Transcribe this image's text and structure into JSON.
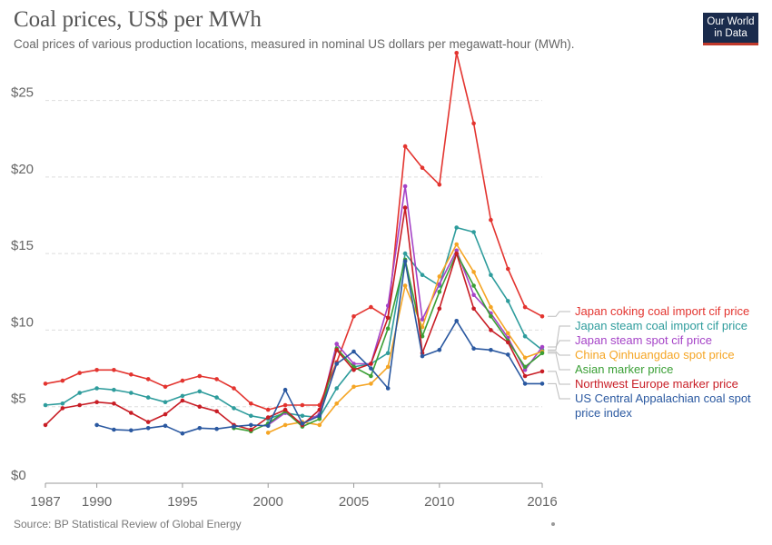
{
  "header": {
    "title": "Coal prices, US$ per MWh",
    "subtitle": "Coal prices of various production locations, measured in nominal US dollars per megawatt-hour (MWh).",
    "logo_line1": "Our World",
    "logo_line2": "in Data"
  },
  "footer": {
    "source": "Source: BP Statistical Review of Global Energy"
  },
  "chart_data": {
    "type": "line",
    "title": "Coal prices, US$ per MWh",
    "xlabel": "",
    "ylabel": "",
    "xlim": [
      1987,
      2016
    ],
    "ylim": [
      0,
      28
    ],
    "grid": true,
    "legend_placement": "right",
    "x_ticks": [
      {
        "value": 1987,
        "label": "1987"
      },
      {
        "value": 1990,
        "label": "1990"
      },
      {
        "value": 1995,
        "label": "1995"
      },
      {
        "value": 2000,
        "label": "2000"
      },
      {
        "value": 2005,
        "label": "2005"
      },
      {
        "value": 2010,
        "label": "2010"
      },
      {
        "value": 2016,
        "label": "2016"
      }
    ],
    "y_ticks": [
      {
        "value": 0,
        "label": "$0"
      },
      {
        "value": 5,
        "label": "$5"
      },
      {
        "value": 10,
        "label": "$10"
      },
      {
        "value": 15,
        "label": "$15"
      },
      {
        "value": 20,
        "label": "$20"
      },
      {
        "value": 25,
        "label": "$25"
      }
    ],
    "series": [
      {
        "name": "Japan coking coal import cif price",
        "color": "#e3342f",
        "points": [
          [
            1987,
            6.5
          ],
          [
            1988,
            6.7
          ],
          [
            1989,
            7.2
          ],
          [
            1990,
            7.4
          ],
          [
            1991,
            7.4
          ],
          [
            1992,
            7.1
          ],
          [
            1993,
            6.8
          ],
          [
            1994,
            6.3
          ],
          [
            1995,
            6.7
          ],
          [
            1996,
            7.0
          ],
          [
            1997,
            6.8
          ],
          [
            1998,
            6.2
          ],
          [
            1999,
            5.2
          ],
          [
            2000,
            4.8
          ],
          [
            2001,
            5.1
          ],
          [
            2002,
            5.1
          ],
          [
            2003,
            5.1
          ],
          [
            2004,
            7.9
          ],
          [
            2005,
            10.9
          ],
          [
            2006,
            11.5
          ],
          [
            2007,
            10.8
          ],
          [
            2008,
            22.0
          ],
          [
            2009,
            20.6
          ],
          [
            2010,
            19.5
          ],
          [
            2011,
            28.1
          ],
          [
            2012,
            23.5
          ],
          [
            2013,
            17.2
          ],
          [
            2014,
            14.0
          ],
          [
            2015,
            11.5
          ],
          [
            2016,
            10.9
          ]
        ]
      },
      {
        "name": "Japan steam coal import cif price",
        "color": "#2e9c9c",
        "points": [
          [
            1987,
            5.1
          ],
          [
            1988,
            5.2
          ],
          [
            1989,
            5.9
          ],
          [
            1990,
            6.2
          ],
          [
            1991,
            6.1
          ],
          [
            1992,
            5.9
          ],
          [
            1993,
            5.6
          ],
          [
            1994,
            5.3
          ],
          [
            1995,
            5.7
          ],
          [
            1996,
            6.0
          ],
          [
            1997,
            5.6
          ],
          [
            1998,
            4.9
          ],
          [
            1999,
            4.4
          ],
          [
            2000,
            4.2
          ],
          [
            2001,
            4.6
          ],
          [
            2002,
            4.4
          ],
          [
            2003,
            4.3
          ],
          [
            2004,
            6.2
          ],
          [
            2005,
            7.6
          ],
          [
            2006,
            7.8
          ],
          [
            2007,
            8.5
          ],
          [
            2008,
            15.0
          ],
          [
            2009,
            13.6
          ],
          [
            2010,
            12.9
          ],
          [
            2011,
            16.7
          ],
          [
            2012,
            16.4
          ],
          [
            2013,
            13.6
          ],
          [
            2014,
            11.9
          ],
          [
            2015,
            9.6
          ],
          [
            2016,
            8.7
          ]
        ]
      },
      {
        "name": "Japan steam spot cif price",
        "color": "#a543c7",
        "points": [
          [
            2000,
            3.8
          ],
          [
            2001,
            4.6
          ],
          [
            2002,
            3.9
          ],
          [
            2003,
            4.5
          ],
          [
            2004,
            9.1
          ],
          [
            2005,
            7.8
          ],
          [
            2006,
            7.8
          ],
          [
            2007,
            11.6
          ],
          [
            2008,
            19.4
          ],
          [
            2009,
            10.7
          ],
          [
            2010,
            13.0
          ],
          [
            2011,
            15.2
          ],
          [
            2012,
            12.3
          ],
          [
            2013,
            11.1
          ],
          [
            2014,
            9.5
          ],
          [
            2015,
            7.4
          ],
          [
            2016,
            8.9
          ]
        ]
      },
      {
        "name": "China Qinhuangdao spot price",
        "color": "#f5a524",
        "points": [
          [
            2000,
            3.3
          ],
          [
            2001,
            3.8
          ],
          [
            2002,
            4.0
          ],
          [
            2003,
            3.8
          ],
          [
            2004,
            5.2
          ],
          [
            2005,
            6.3
          ],
          [
            2006,
            6.5
          ],
          [
            2007,
            7.6
          ],
          [
            2008,
            12.9
          ],
          [
            2009,
            10.2
          ],
          [
            2010,
            13.5
          ],
          [
            2011,
            15.6
          ],
          [
            2012,
            13.8
          ],
          [
            2013,
            11.5
          ],
          [
            2014,
            9.8
          ],
          [
            2015,
            8.2
          ],
          [
            2016,
            8.6
          ]
        ]
      },
      {
        "name": "Asian marker price",
        "color": "#3a9f35",
        "points": [
          [
            1998,
            3.6
          ],
          [
            1999,
            3.4
          ],
          [
            2000,
            3.9
          ],
          [
            2001,
            4.7
          ],
          [
            2002,
            3.7
          ],
          [
            2003,
            4.2
          ],
          [
            2004,
            8.8
          ],
          [
            2005,
            7.6
          ],
          [
            2006,
            7.0
          ],
          [
            2007,
            10.1
          ],
          [
            2008,
            14.6
          ],
          [
            2009,
            9.6
          ],
          [
            2010,
            12.5
          ],
          [
            2011,
            15.0
          ],
          [
            2012,
            12.9
          ],
          [
            2013,
            10.9
          ],
          [
            2014,
            9.3
          ],
          [
            2015,
            7.6
          ],
          [
            2016,
            8.5
          ]
        ]
      },
      {
        "name": "Northwest Europe marker price",
        "color": "#c81d25",
        "points": [
          [
            1987,
            3.8
          ],
          [
            1988,
            4.9
          ],
          [
            1989,
            5.1
          ],
          [
            1990,
            5.3
          ],
          [
            1991,
            5.2
          ],
          [
            1992,
            4.6
          ],
          [
            1993,
            4.0
          ],
          [
            1994,
            4.5
          ],
          [
            1995,
            5.4
          ],
          [
            1996,
            5.0
          ],
          [
            1997,
            4.7
          ],
          [
            1998,
            3.8
          ],
          [
            1999,
            3.5
          ],
          [
            2000,
            4.3
          ],
          [
            2001,
            4.8
          ],
          [
            2002,
            3.8
          ],
          [
            2003,
            4.8
          ],
          [
            2004,
            8.7
          ],
          [
            2005,
            7.4
          ],
          [
            2006,
            7.8
          ],
          [
            2007,
            10.8
          ],
          [
            2008,
            18.0
          ],
          [
            2009,
            8.5
          ],
          [
            2010,
            11.4
          ],
          [
            2011,
            15.0
          ],
          [
            2012,
            11.4
          ],
          [
            2013,
            10.0
          ],
          [
            2014,
            9.2
          ],
          [
            2015,
            7.0
          ],
          [
            2016,
            7.3
          ]
        ]
      },
      {
        "name": "US Central Appalachian coal spot price index",
        "color": "#2a58a0",
        "points": [
          [
            1990,
            3.8
          ],
          [
            1991,
            3.5
          ],
          [
            1992,
            3.45
          ],
          [
            1993,
            3.6
          ],
          [
            1994,
            3.75
          ],
          [
            1995,
            3.25
          ],
          [
            1996,
            3.6
          ],
          [
            1997,
            3.55
          ],
          [
            1998,
            3.7
          ],
          [
            1999,
            3.8
          ],
          [
            2000,
            3.75
          ],
          [
            2001,
            6.1
          ],
          [
            2002,
            3.9
          ],
          [
            2003,
            4.4
          ],
          [
            2004,
            7.8
          ],
          [
            2005,
            8.6
          ],
          [
            2006,
            7.5
          ],
          [
            2007,
            6.2
          ],
          [
            2008,
            14.5
          ],
          [
            2009,
            8.3
          ],
          [
            2010,
            8.7
          ],
          [
            2011,
            10.6
          ],
          [
            2012,
            8.8
          ],
          [
            2013,
            8.7
          ],
          [
            2014,
            8.4
          ],
          [
            2015,
            6.5
          ],
          [
            2016,
            6.5
          ]
        ]
      }
    ],
    "legend": [
      {
        "series": 0,
        "lines": [
          "Japan coking coal import cif price"
        ]
      },
      {
        "series": 1,
        "lines": [
          "Japan steam coal import cif price"
        ]
      },
      {
        "series": 2,
        "lines": [
          "Japan steam spot cif price"
        ]
      },
      {
        "series": 3,
        "lines": [
          "China Qinhuangdao spot price"
        ]
      },
      {
        "series": 4,
        "lines": [
          "Asian marker price"
        ]
      },
      {
        "series": 5,
        "lines": [
          "Northwest Europe marker price"
        ]
      },
      {
        "series": 6,
        "lines": [
          "US Central Appalachian coal spot",
          "price index"
        ]
      }
    ]
  }
}
